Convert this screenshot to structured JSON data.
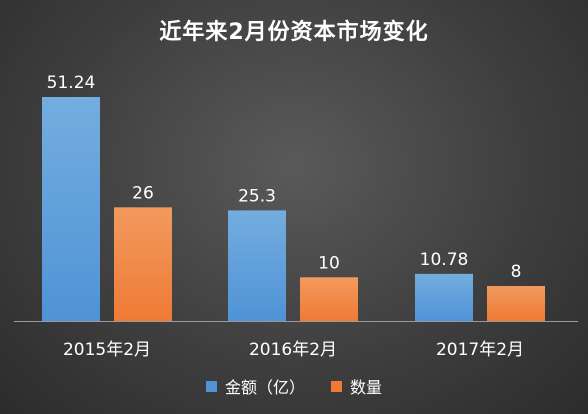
{
  "colors": {
    "series_1": "#4f93d6",
    "series_1_light": "#74addf",
    "series_2": "#ef7a35",
    "series_2_light": "#f29a5e",
    "axis": "#9a9a9a",
    "text": "#ffffff"
  },
  "chart_data": {
    "type": "bar",
    "title": "近年来2月份资本市场变化",
    "categories": [
      "2015年2月",
      "2016年2月",
      "2017年2月"
    ],
    "series": [
      {
        "name": "金额（亿）",
        "values": [
          51.24,
          25.3,
          10.78
        ],
        "labels": [
          "51.24",
          "25.3",
          "10.78"
        ]
      },
      {
        "name": "数量",
        "values": [
          26,
          10,
          8
        ],
        "labels": [
          "26",
          "10",
          "8"
        ]
      }
    ],
    "xlabel": "",
    "ylabel": "",
    "ylim": [
      0,
      55
    ],
    "grid": false,
    "legend_position": "bottom"
  }
}
